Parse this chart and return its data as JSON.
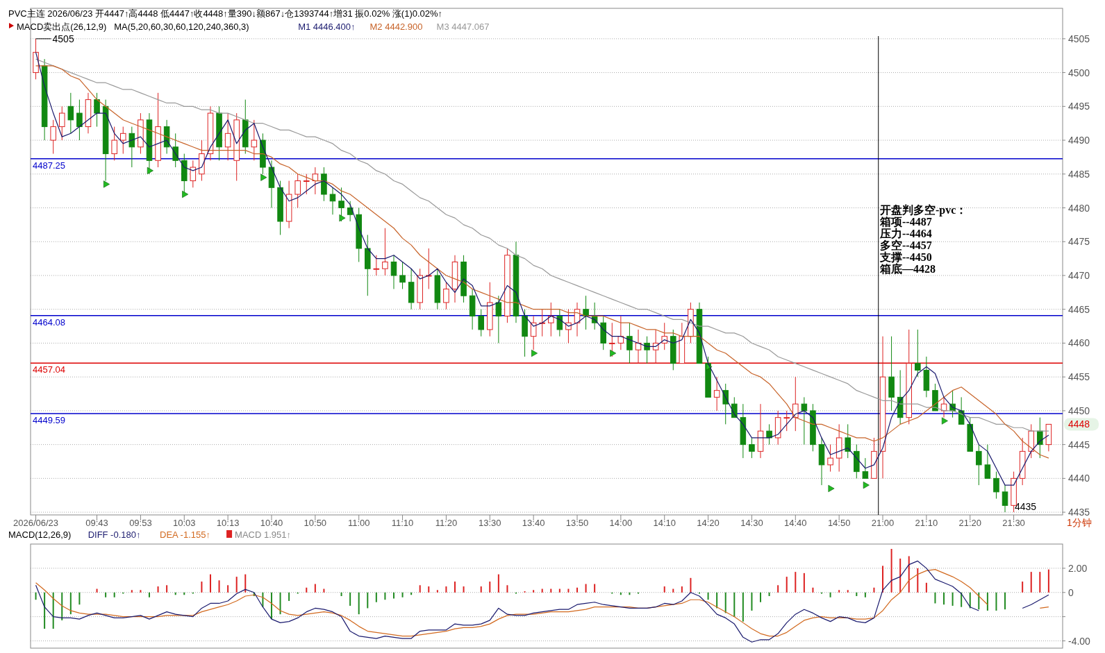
{
  "chart_data": [
    {
      "type": "candlestick",
      "title": "PVC主连 2026/06/23 开4447↑高4448 低4447↑收4448↑量390↓额867↓仓1393744↑增31 振0.02% 涨(1)0.02%↑",
      "subtitle": "MACD卖出点(26,12,9)   MA(5,20,60,30,60,120,240,360,3)",
      "categories": [
        "2026/06/23",
        null,
        null,
        null,
        null,
        null,
        null,
        "09:43",
        null,
        null,
        null,
        null,
        "09:53",
        null,
        null,
        null,
        null,
        "10:03",
        null,
        null,
        null,
        null,
        "10:13",
        null,
        null,
        null,
        null,
        "10:40",
        null,
        null,
        null,
        null,
        "10:50",
        null,
        null,
        null,
        null,
        "11:00",
        null,
        null,
        null,
        null,
        "11:10",
        null,
        null,
        null,
        null,
        "11:20",
        null,
        null,
        null,
        null,
        "13:30",
        null,
        null,
        null,
        null,
        "13:40",
        null,
        null,
        null,
        null,
        "13:50",
        null,
        null,
        null,
        null,
        "14:00",
        null,
        null,
        null,
        null,
        "14:10",
        null,
        null,
        null,
        null,
        "14:20",
        null,
        null,
        null,
        null,
        "14:30",
        null,
        null,
        null,
        null,
        "14:40",
        null,
        null,
        null,
        null,
        "14:50",
        null,
        null,
        null,
        null,
        "21:00",
        null,
        null,
        null,
        null,
        "21:10",
        null,
        null,
        null,
        null,
        "21:20",
        null,
        null,
        null,
        null,
        "21:30",
        null,
        null,
        null,
        null
      ],
      "ohlc": [
        [
          4500,
          4505,
          4499,
          4503
        ],
        [
          4501,
          4502,
          4490,
          4492
        ],
        [
          4490,
          4493,
          4488,
          4492
        ],
        [
          4492,
          4495,
          4490,
          4494
        ],
        [
          4495,
          4497,
          4491,
          4493
        ],
        [
          4494,
          4496,
          4490,
          4492
        ],
        [
          4492,
          4497,
          4491,
          4496
        ],
        [
          4496,
          4497,
          4492,
          4494
        ],
        [
          4495,
          4496,
          4484,
          4488
        ],
        [
          4488,
          4492,
          4487,
          4490
        ],
        [
          4490,
          4492,
          4488,
          4491
        ],
        [
          4491,
          4492,
          4486,
          4489
        ],
        [
          4489,
          4494,
          4488,
          4493
        ],
        [
          4493,
          4494,
          4485,
          4487
        ],
        [
          4487,
          4497,
          4486,
          4492
        ],
        [
          4492,
          4493,
          4488,
          4489
        ],
        [
          4489,
          4491,
          4486,
          4487
        ],
        [
          4487,
          4488,
          4482,
          4484
        ],
        [
          4484,
          4487,
          4483,
          4486
        ],
        [
          4485,
          4490,
          4484,
          4488
        ],
        [
          4488,
          4495,
          4487,
          4494
        ],
        [
          4494,
          4495,
          4487,
          4489
        ],
        [
          4489,
          4494,
          4487,
          4491
        ],
        [
          4487,
          4494,
          4484,
          4493
        ],
        [
          4493,
          4496,
          4488,
          4489
        ],
        [
          4489,
          4493,
          4487,
          4490
        ],
        [
          4490,
          4491,
          4485,
          4486
        ],
        [
          4486,
          4487,
          4480,
          4483
        ],
        [
          4483,
          4484,
          4476,
          4478
        ],
        [
          4478,
          4484,
          4477,
          4482
        ],
        [
          4482,
          4485,
          4480,
          4484
        ],
        [
          4484,
          4485,
          4482,
          4484
        ],
        [
          4484,
          4486,
          4482,
          4485
        ],
        [
          4485,
          4486,
          4481,
          4482
        ],
        [
          4482,
          4483,
          4479,
          4481
        ],
        [
          4481,
          4483,
          4478,
          4480
        ],
        [
          4480,
          4481,
          4478,
          4479
        ],
        [
          4479,
          4480,
          4472,
          4474
        ],
        [
          4474,
          4476,
          4467,
          4471
        ],
        [
          4471,
          4473,
          4470,
          4471
        ],
        [
          4471,
          4477,
          4470,
          4472
        ],
        [
          4472,
          4473,
          4468,
          4470
        ],
        [
          4470,
          4472,
          4468,
          4469
        ],
        [
          4469,
          4471,
          4465,
          4466
        ],
        [
          4466,
          4471,
          4465,
          4470
        ],
        [
          4470,
          4474,
          4468,
          4470
        ],
        [
          4470,
          4471,
          4465,
          4466
        ],
        [
          4466,
          4469,
          4465,
          4468
        ],
        [
          4468,
          4473,
          4466,
          4472
        ],
        [
          4472,
          4473,
          4466,
          4467
        ],
        [
          4467,
          4468,
          4462,
          4464
        ],
        [
          4464,
          4465,
          4461,
          4462
        ],
        [
          4462,
          4469,
          4461,
          4466
        ],
        [
          4466,
          4467,
          4460,
          4464
        ],
        [
          4464,
          4474,
          4463,
          4473
        ],
        [
          4473,
          4475,
          4463,
          4464
        ],
        [
          4464,
          4465,
          4458,
          4461
        ],
        [
          4461,
          4464,
          4459,
          4463
        ],
        [
          4463,
          4465,
          4461,
          4463
        ],
        [
          4463,
          4466,
          4461,
          4464
        ],
        [
          4464,
          4465,
          4461,
          4462
        ],
        [
          4462,
          4465,
          4460,
          4463
        ],
        [
          4463,
          4466,
          4461,
          4465
        ],
        [
          4465,
          4467,
          4462,
          4464
        ],
        [
          4464,
          4466,
          4462,
          4463
        ],
        [
          4463,
          4464,
          4459,
          4460
        ],
        [
          4460,
          4463,
          4458,
          4460
        ],
        [
          4460,
          4464,
          4459,
          4461
        ],
        [
          4461,
          4463,
          4457,
          4459
        ],
        [
          4459,
          4462,
          4457,
          4460
        ],
        [
          4460,
          4461,
          4457,
          4459
        ],
        [
          4459,
          4462,
          4457,
          4460
        ],
        [
          4460,
          4463,
          4459,
          4461
        ],
        [
          4461,
          4462,
          4456,
          4457
        ],
        [
          4457,
          4463,
          4457,
          4461
        ],
        [
          4461,
          4466,
          4460,
          4465
        ],
        [
          4465,
          4466,
          4457,
          4457
        ],
        [
          4457,
          4458,
          4452,
          4452
        ],
        [
          4452,
          4455,
          4450,
          4453
        ],
        [
          4453,
          4454,
          4448,
          4451
        ],
        [
          4451,
          4452,
          4449,
          4449
        ],
        [
          4449,
          4451,
          4443,
          4445
        ],
        [
          4445,
          4446,
          4443,
          4444
        ],
        [
          4444,
          4451,
          4443,
          4447
        ],
        [
          4447,
          4448,
          4445,
          4446
        ],
        [
          4446,
          4450,
          4445,
          4449
        ],
        [
          4449,
          4450,
          4447,
          4449
        ],
        [
          4449,
          4455,
          4447,
          4451
        ],
        [
          4451,
          4452,
          4445,
          4450
        ],
        [
          4450,
          4451,
          4444,
          4445
        ],
        [
          4445,
          4446,
          4439,
          4442
        ],
        [
          4442,
          4445,
          4441,
          4443
        ],
        [
          4443,
          4448,
          4441,
          4446
        ],
        [
          4446,
          4448,
          4443,
          4444
        ],
        [
          4444,
          4445,
          4440,
          4441
        ],
        [
          4441,
          4443,
          4440,
          4440
        ],
        [
          4440,
          4446,
          4440,
          4444
        ],
        [
          4444,
          4461,
          4440,
          4455
        ],
        [
          4455,
          4461,
          4450,
          4452
        ],
        [
          4452,
          4456,
          4448,
          4449
        ],
        [
          4449,
          4462,
          4448,
          4457
        ],
        [
          4457,
          4462,
          4455,
          4456
        ],
        [
          4456,
          4458,
          4452,
          4453
        ],
        [
          4453,
          4454,
          4450,
          4450
        ],
        [
          4450,
          4452,
          4449,
          4451
        ],
        [
          4451,
          4453,
          4449,
          4450
        ],
        [
          4450,
          4452,
          4448,
          4448
        ],
        [
          4448,
          4449,
          4444,
          4444
        ],
        [
          4444,
          4445,
          4439,
          4442
        ],
        [
          4442,
          4445,
          4440,
          4440
        ],
        [
          4440,
          4441,
          4437,
          4438
        ],
        [
          4438,
          4439,
          4435,
          4436
        ],
        [
          4436,
          4441,
          4435,
          4440
        ],
        [
          4440,
          4446,
          4439,
          4444
        ],
        [
          4444,
          4448,
          4443,
          4447
        ],
        [
          4447,
          4449,
          4443,
          4445
        ],
        [
          4445,
          4448,
          4444,
          4448
        ]
      ],
      "series": [
        {
          "name": "M1 4446.400↑",
          "type": "line",
          "color": "#1a1a6e",
          "values": [
            4503,
            4498,
            4494,
            4490.5,
            4491,
            4492,
            4493,
            4494,
            4494,
            4491,
            4489.5,
            4490,
            4490.5,
            4489,
            4489.5,
            4490,
            4488,
            4486,
            4485.5,
            4486,
            4489,
            4491,
            4493,
            4489.5,
            4491.5,
            4492.5,
            4489,
            4486,
            4483,
            4481,
            4481.5,
            4482.5,
            4483.5,
            4484,
            4483,
            4482,
            4480.5,
            4477,
            4474,
            4472.5,
            4472.5,
            4473,
            4472,
            4471,
            4469.5,
            4470,
            4471,
            4469,
            4467.5,
            4469.5,
            4468.5,
            4465.5,
            4465.5,
            4466,
            4468.5,
            4467.5,
            4464,
            4462.5,
            4463,
            4464,
            4463.5,
            4462.5,
            4463,
            4464,
            4463.5,
            4462,
            4461,
            4461,
            4460.5,
            4460,
            4459.5,
            4459.5,
            4460.5,
            4460,
            4460.5,
            4463.5,
            4461.5,
            4457,
            4454.5,
            4452,
            4449.5,
            4448,
            4446,
            4446,
            4446,
            4446.5,
            4448,
            4449.5,
            4450,
            4449,
            4446,
            4443.5,
            4444,
            4444.5,
            4443,
            4441.5,
            4442,
            4444.5,
            4449,
            4451.5,
            4453,
            4455.5,
            4456.5,
            4455.5,
            4452,
            4450.5,
            4450,
            4448,
            4445,
            4444,
            4441.5,
            4439,
            4439,
            4441.5,
            4444,
            4445.5,
            4446.4
          ]
        },
        {
          "name": "M2 4442.900",
          "type": "line",
          "color": "#c8642a",
          "values": [
            4501,
            4501,
            4501,
            4500.5,
            4499.5,
            4499,
            4497.5,
            4496,
            4495,
            4494,
            4493,
            4492.5,
            4492,
            4491.5,
            4491,
            4490.5,
            4490,
            4489.5,
            4489,
            4488.5,
            4488.5,
            4488.5,
            4488.5,
            4488.5,
            4488.5,
            4488,
            4488,
            4487.5,
            4486.5,
            4486,
            4485,
            4484.5,
            4484,
            4484,
            4483.5,
            4482.5,
            4482,
            4481,
            4480,
            4479,
            4478,
            4477,
            4475.5,
            4474.5,
            4473,
            4472,
            4471,
            4470,
            4469.5,
            4469,
            4468,
            4467.5,
            4467,
            4466.5,
            4466,
            4466,
            4465.5,
            4465,
            4465,
            4465,
            4465,
            4464.5,
            4464.5,
            4464,
            4464,
            4464,
            4463.5,
            4463,
            4463,
            4462.5,
            4462,
            4462,
            4461.5,
            4461.5,
            4461,
            4461,
            4461,
            4460,
            4459,
            4458.5,
            4457.5,
            4456.5,
            4455.5,
            4455,
            4454,
            4452.5,
            4451,
            4449,
            4448.5,
            4448,
            4448,
            4447.5,
            4447,
            4446.5,
            4446,
            4446,
            4445.5,
            4446,
            4447,
            4448,
            4448.5,
            4449,
            4450,
            4451,
            4452,
            4453,
            4453.5,
            4452.5,
            4451.5,
            4450.5,
            4449.5,
            4448,
            4447,
            4445.5,
            4444.5,
            4443.5,
            4443
          ]
        },
        {
          "name": "M3 4447.067",
          "type": "line",
          "color": "#999999",
          "values": [
            4502,
            4501.5,
            4501,
            4500.5,
            4500,
            4499.5,
            4499,
            4498.5,
            4498.5,
            4498,
            4497.5,
            4497.5,
            4497,
            4496.5,
            4496,
            4495.5,
            4495.5,
            4495,
            4495,
            4494.5,
            4494.5,
            4494,
            4494,
            4493.5,
            4493,
            4492.5,
            4492.5,
            4492,
            4491.5,
            4491.5,
            4491,
            4490.5,
            4490.5,
            4490,
            4489.5,
            4488.5,
            4488,
            4487,
            4486.5,
            4485.5,
            4485,
            4484,
            4483.5,
            4482.5,
            4481.5,
            4481,
            4480,
            4479,
            4478.5,
            4477.5,
            4477,
            4476,
            4475.5,
            4474.5,
            4474,
            4473,
            4472.5,
            4471.5,
            4471,
            4470,
            4469.5,
            4469,
            4468.5,
            4468,
            4467.5,
            4467,
            4466.5,
            4466,
            4465.5,
            4465,
            4465,
            4464.5,
            4464,
            4463.5,
            4463.5,
            4463,
            4462.5,
            4462.5,
            4462,
            4461.5,
            4461.5,
            4461,
            4460,
            4459.5,
            4459,
            4458,
            4457.5,
            4457,
            4456.5,
            4456,
            4455.5,
            4455,
            4454.5,
            4454,
            4453,
            4452.5,
            4452,
            4451.5,
            4451.5,
            4451,
            4451,
            4451,
            4450.5,
            4450.5,
            4450,
            4450,
            4449.5,
            4449,
            4449,
            4448.5,
            4448,
            4448,
            4447.5,
            4447.5,
            4447,
            4447,
            4447
          ]
        },
        {
          "type": "scatter",
          "marker": "triangle",
          "color": "#22bb22",
          "values": [
            null,
            null,
            null,
            null,
            null,
            null,
            null,
            null,
            4483.5,
            null,
            null,
            null,
            null,
            4485.5,
            null,
            null,
            null,
            4482,
            null,
            null,
            null,
            null,
            null,
            null,
            null,
            null,
            4484.5,
            null,
            null,
            null,
            null,
            null,
            null,
            null,
            null,
            4478.5,
            null,
            null,
            null,
            null,
            null,
            null,
            null,
            null,
            null,
            null,
            null,
            null,
            null,
            null,
            null,
            null,
            null,
            null,
            null,
            null,
            null,
            4458.5,
            null,
            null,
            null,
            null,
            null,
            null,
            null,
            null,
            4458.5,
            null,
            null,
            null,
            null,
            null,
            null,
            null,
            null,
            null,
            null,
            4456.5,
            null,
            null,
            null,
            null,
            null,
            null,
            null,
            null,
            null,
            null,
            null,
            null,
            null,
            4438.5,
            null,
            null,
            null,
            4439,
            null,
            null,
            null,
            null,
            null,
            null,
            null,
            null,
            4448.5,
            null,
            null,
            null,
            null,
            null,
            null,
            null,
            null,
            null,
            null,
            null,
            null
          ]
        }
      ],
      "ylim": [
        4434.6,
        4509.5
      ],
      "yticks": [
        4435,
        4440,
        4445,
        4450,
        4455,
        4460,
        4465,
        4470,
        4475,
        4480,
        4485,
        4490,
        4495,
        4500,
        4505
      ],
      "grid": "y",
      "legend": "top left",
      "ref_lines": [
        {
          "axis": "y",
          "value": 4487.25,
          "label": "4487.25",
          "color": "#0000cc"
        },
        {
          "axis": "y",
          "value": 4464.08,
          "label": "4464.08",
          "color": "#0000cc"
        },
        {
          "axis": "y",
          "value": 4457.04,
          "label": "4457.04",
          "color": "#dd0000"
        },
        {
          "axis": "y",
          "value": 4449.59,
          "label": "4449.59",
          "color": "#0000cc"
        },
        {
          "axis": "x",
          "value": "21:00",
          "color": "#000000"
        }
      ],
      "annotations": [
        {
          "text": "4505",
          "x": "2026/06/23",
          "y": 4505
        },
        "4435",
        "4448",
        "开盘判多空-pvc：",
        "箱项--4487",
        "压力--4464",
        "多空--4457",
        "支撑--4450",
        "箱底—4428"
      ],
      "xlabel": "1分钟"
    },
    {
      "type": "bar",
      "title": "MACD(12,26,9)",
      "legend": "top left",
      "tick_labels": "y",
      "grid": "y",
      "categories": [
        null,
        null,
        null,
        null,
        null,
        null,
        null,
        null,
        null,
        null,
        null,
        null,
        null,
        null,
        null,
        null,
        null,
        null,
        null,
        null,
        null,
        null,
        null,
        null,
        null,
        null,
        null,
        null,
        null,
        null,
        null,
        null,
        null,
        null,
        null,
        null,
        null,
        null,
        null,
        null,
        null,
        null,
        null,
        null,
        null,
        null,
        null,
        null,
        null,
        null,
        null,
        null,
        null,
        null,
        null,
        null,
        null,
        null,
        null,
        null,
        null,
        null,
        null,
        null,
        null,
        null,
        null,
        null,
        null,
        null,
        null,
        null,
        null,
        null,
        null,
        null,
        null,
        null,
        null,
        null,
        null,
        null,
        null,
        null,
        null,
        null,
        null,
        null,
        null,
        null,
        null,
        null,
        null,
        null,
        null,
        null,
        null,
        null,
        null,
        null,
        null,
        null,
        null,
        null,
        null,
        null,
        null,
        null,
        null,
        null,
        null,
        null,
        null,
        null,
        null,
        null,
        null
      ],
      "series": [
        {
          "name": "DIFF -0.180↑",
          "type": "line",
          "color": "#1a1a6e",
          "values": [
            0.6,
            -1.2,
            -2.0,
            -2.1,
            -2.1,
            -2.2,
            -1.9,
            -1.7,
            -1.9,
            -2.1,
            -2.1,
            -2.0,
            -1.9,
            -2.2,
            -1.9,
            -1.6,
            -1.8,
            -1.9,
            -2.0,
            -1.3,
            -0.9,
            -0.9,
            -0.7,
            -0.1,
            0.25,
            0,
            -1.2,
            -2.2,
            -2.5,
            -2.4,
            -2.1,
            -1.6,
            -1.3,
            -1.4,
            -1.6,
            -2.0,
            -3.2,
            -3.6,
            -3.7,
            -3.8,
            -3.6,
            -3.7,
            -3.8,
            -3.8,
            -3.2,
            -3.1,
            -3.1,
            -3.1,
            -2.6,
            -2.7,
            -2.7,
            -2.6,
            -2.3,
            -1.3,
            -1.8,
            -1.9,
            -1.9,
            -1.7,
            -1.6,
            -1.5,
            -1.4,
            -1.4,
            -1.0,
            -0.9,
            -0.8,
            -1.0,
            -1.1,
            -1.2,
            -1.3,
            -1.3,
            -1.3,
            -1.2,
            -0.9,
            -1.0,
            -0.7,
            0,
            -0.3,
            -1.0,
            -1.8,
            -2.1,
            -2.6,
            -3.7,
            -4.1,
            -3.9,
            -3.9,
            -3.4,
            -2.5,
            -1.8,
            -1.4,
            -1.7,
            -2.1,
            -2.4,
            -2.0,
            -2.1,
            -2.4,
            -2.5,
            -2.1,
            0.2,
            1.0,
            1.3,
            2.3,
            2.6,
            2.0,
            1.1,
            0.8,
            0.5,
            -0.1,
            -1.2,
            -1.5,
            null,
            null,
            null,
            null,
            -1.3,
            -1.0,
            -0.6,
            -0.2
          ]
        },
        {
          "name": "DEA -1.155↑",
          "type": "line",
          "color": "#d2691e",
          "values": [
            0.8,
            0.2,
            -0.5,
            -1.1,
            -1.5,
            -1.7,
            -1.8,
            -1.8,
            -1.8,
            -1.9,
            -2.0,
            -2.0,
            -2.0,
            -2.0,
            -2.0,
            -1.9,
            -1.9,
            -1.9,
            -1.9,
            -1.6,
            -1.4,
            -1.2,
            -1.0,
            -0.7,
            -0.3,
            -0.2,
            -0.4,
            -0.9,
            -1.5,
            -1.8,
            -1.9,
            -1.8,
            -1.7,
            -1.6,
            -1.7,
            -1.9,
            -2.3,
            -2.8,
            -3.2,
            -3.3,
            -3.4,
            -3.5,
            -3.6,
            -3.6,
            -3.5,
            -3.4,
            -3.3,
            -3.2,
            -3.0,
            -2.9,
            -2.9,
            -2.8,
            -2.6,
            -2.2,
            -1.9,
            -1.8,
            -1.8,
            -1.8,
            -1.7,
            -1.6,
            -1.6,
            -1.6,
            -1.5,
            -1.4,
            -1.2,
            -1.2,
            -1.2,
            -1.2,
            -1.2,
            -1.3,
            -1.3,
            -1.2,
            -1.1,
            -1.0,
            -0.9,
            -0.6,
            -0.6,
            -0.8,
            -1.2,
            -1.6,
            -2.0,
            -2.5,
            -3.0,
            -3.4,
            -3.6,
            -3.6,
            -3.3,
            -2.8,
            -2.3,
            -2.1,
            -2.0,
            -2.1,
            -2.1,
            -2.1,
            -2.2,
            -2.2,
            -2.1,
            -1.5,
            -0.6,
            0,
            1.0,
            1.5,
            1.8,
            1.9,
            1.6,
            1.3,
            0.9,
            0.4,
            -0.3,
            -1.0,
            null,
            null,
            null,
            null,
            null,
            -1.3,
            -1.2
          ]
        },
        {
          "name": "MACD 1.951↑",
          "type": "bar",
          "values": [
            -0.6,
            -3.0,
            -3.0,
            -2.3,
            -1.8,
            -1.0,
            0,
            0.3,
            -0.4,
            -0.4,
            -0.1,
            0.2,
            0.2,
            -0.4,
            0.5,
            0.6,
            -0.2,
            -0.2,
            -0.1,
            0.9,
            1.5,
            1.0,
            0.6,
            1.3,
            1.5,
            -0.3,
            -1.2,
            -2.2,
            -1.8,
            -0.7,
            -0.1,
            0.4,
            0.7,
            0.3,
            0,
            -0.3,
            -1.1,
            -1.8,
            -1.3,
            -0.8,
            -0.6,
            -0.5,
            -0.4,
            -0.2,
            0.6,
            0.5,
            0.2,
            0.5,
            0.9,
            0.5,
            0,
            0.5,
            0.9,
            1.5,
            0.6,
            -0.1,
            0.1,
            0.2,
            0.3,
            0.3,
            0.3,
            0.3,
            0.4,
            0.7,
            0.7,
            0,
            -0.1,
            -0.2,
            -0.2,
            -0.1,
            0,
            0,
            0.5,
            0.3,
            0.5,
            1.2,
            -0.1,
            -0.6,
            -1.3,
            -1.7,
            -2.0,
            -2.4,
            -1.5,
            -0.8,
            -0.3,
            0.6,
            1.3,
            1.7,
            1.6,
            0.4,
            -0.1,
            -0.4,
            0.2,
            0.2,
            -0.3,
            -0.4,
            0.4,
            2.2,
            3.6,
            2.8,
            3.0,
            2.0,
            0.8,
            -0.9,
            -1.0,
            -1.1,
            -1.2,
            -1.3,
            -1.4,
            -1.5,
            -1.5,
            -1.4,
            0,
            0.9,
            1.7,
            1.7,
            1.9
          ],
          "colors": [
            "#228b22",
            "#228b22",
            "#228b22",
            "#228b22",
            "#228b22",
            "#228b22",
            "#dd2222",
            "#dd2222",
            "#228b22",
            "#228b22",
            "#228b22",
            "#dd2222",
            "#dd2222",
            "#228b22",
            "#dd2222",
            "#dd2222",
            "#228b22",
            "#228b22",
            "#228b22",
            "#dd2222",
            "#dd2222",
            "#dd2222",
            "#dd2222",
            "#dd2222",
            "#dd2222",
            "#228b22",
            "#228b22",
            "#228b22",
            "#228b22",
            "#228b22",
            "#228b22",
            "#dd2222",
            "#dd2222",
            "#dd2222",
            "#dd2222",
            "#228b22",
            "#228b22",
            "#228b22",
            "#228b22",
            "#228b22",
            "#228b22",
            "#228b22",
            "#228b22",
            "#228b22",
            "#dd2222",
            "#dd2222",
            "#dd2222",
            "#dd2222",
            "#dd2222",
            "#dd2222",
            "#dd2222",
            "#dd2222",
            "#dd2222",
            "#dd2222",
            "#dd2222",
            "#228b22",
            "#dd2222",
            "#dd2222",
            "#dd2222",
            "#dd2222",
            "#dd2222",
            "#dd2222",
            "#dd2222",
            "#dd2222",
            "#dd2222",
            "#dd2222",
            "#228b22",
            "#228b22",
            "#228b22",
            "#228b22",
            "#dd2222",
            "#dd2222",
            "#dd2222",
            "#dd2222",
            "#dd2222",
            "#dd2222",
            "#228b22",
            "#228b22",
            "#228b22",
            "#228b22",
            "#228b22",
            "#228b22",
            "#228b22",
            "#228b22",
            "#228b22",
            "#dd2222",
            "#dd2222",
            "#dd2222",
            "#dd2222",
            "#dd2222",
            "#228b22",
            "#228b22",
            "#dd2222",
            "#dd2222",
            "#228b22",
            "#228b22",
            "#dd2222",
            "#dd2222",
            "#dd2222",
            "#dd2222",
            "#dd2222",
            "#dd2222",
            "#dd2222",
            "#228b22",
            "#228b22",
            "#228b22",
            "#228b22",
            "#228b22",
            "#228b22",
            "#228b22",
            "#228b22",
            "#228b22",
            "#dd2222",
            "#dd2222",
            "#dd2222",
            "#dd2222",
            "#dd2222"
          ]
        }
      ],
      "ylim": [
        -4.6,
        4.0
      ],
      "yticks": [
        {
          "value": 2,
          "label": "2.00"
        },
        0,
        {
          "value": -2,
          "label": null
        },
        {
          "value": -4,
          "label": "-4.00"
        }
      ]
    }
  ]
}
